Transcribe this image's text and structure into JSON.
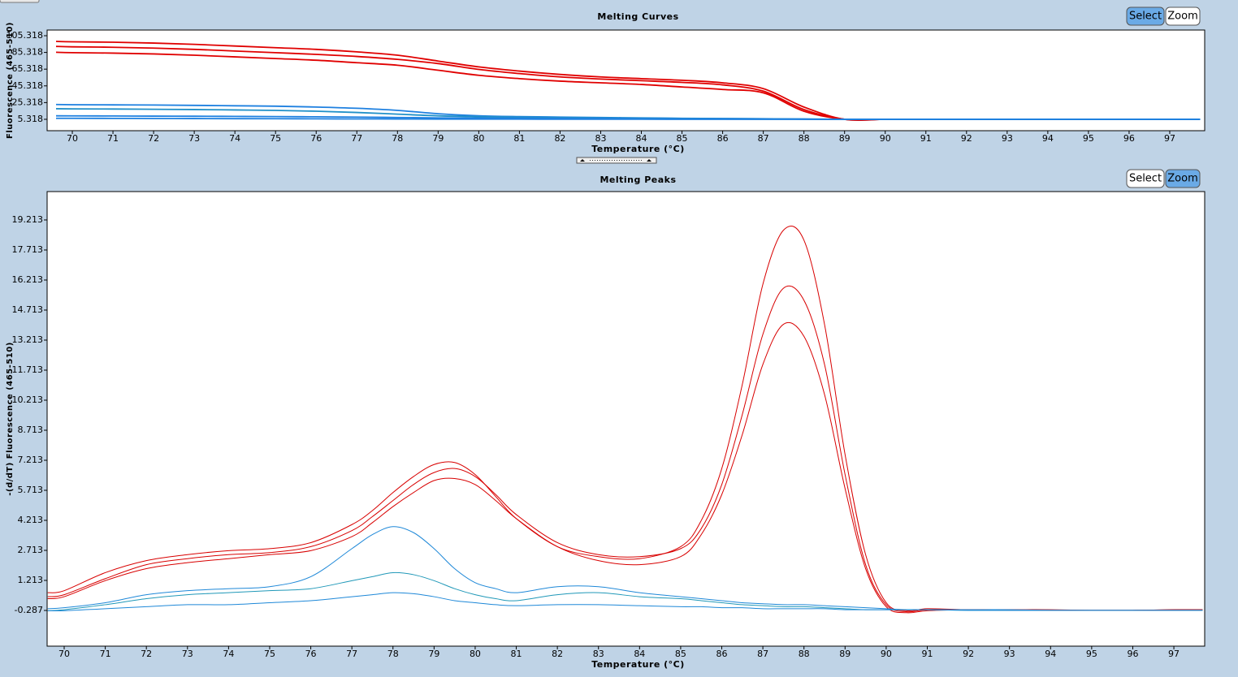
{
  "chart_data": [
    {
      "type": "line",
      "title": "Melting Curves",
      "xlabel": "Temperature (°C)",
      "ylabel": "Fluorescence (465-510)",
      "buttons": [
        "Select",
        "Zoom"
      ],
      "active_button": 0,
      "xlim": [
        69.38,
        97.86
      ],
      "ylim": [
        -8.3,
        112.1
      ],
      "xticks": [
        70,
        71,
        72,
        73,
        74,
        75,
        76,
        77,
        78,
        79,
        80,
        81,
        82,
        83,
        84,
        85,
        86,
        87,
        88,
        89,
        90,
        91,
        92,
        93,
        94,
        95,
        96,
        97
      ],
      "yticks": [
        5.318,
        25.318,
        45.318,
        65.318,
        85.318,
        105.318
      ],
      "x": [
        69.6,
        70,
        71,
        72,
        73,
        74,
        75,
        76,
        77,
        78,
        79,
        80,
        81,
        82,
        83,
        84,
        85,
        86,
        87,
        88,
        89,
        90,
        91,
        92,
        93,
        94,
        95,
        96,
        97,
        97.75
      ],
      "series": [
        {
          "color": "#e00000",
          "values": [
            98.5,
            98,
            97.5,
            96.5,
            95,
            93,
            91,
            89,
            86,
            82,
            75,
            68,
            63,
            59,
            56,
            54,
            52,
            49,
            42,
            20,
            5.3,
            5.3,
            5.3,
            5.3,
            5.3,
            5.3,
            5.3,
            5.3,
            5.3,
            5.3
          ]
        },
        {
          "color": "#e00000",
          "values": [
            92.5,
            92,
            91.5,
            90.5,
            89,
            87,
            85,
            83,
            80.5,
            77,
            72,
            65,
            60,
            56,
            53.5,
            51.5,
            49.5,
            46.5,
            39,
            17,
            5.3,
            5.3,
            5.3,
            5.3,
            5.3,
            5.3,
            5.3,
            5.3,
            5.3,
            5.3
          ]
        },
        {
          "color": "#e00000",
          "values": [
            85.5,
            85,
            84.5,
            83.5,
            82,
            80,
            78,
            76,
            73,
            70,
            64,
            58,
            54,
            51,
            49,
            47,
            44,
            41,
            37,
            15,
            5.4,
            5.4,
            5.4,
            5.4,
            5.4,
            5.4,
            5.4,
            5.4,
            5.4,
            5.4
          ]
        },
        {
          "color": "#1e80e0",
          "values": [
            23,
            22.8,
            22.6,
            22.4,
            22,
            21.5,
            21,
            20,
            18.5,
            16,
            12,
            9.5,
            8.5,
            8,
            7.5,
            7,
            6.5,
            6.2,
            6,
            5.6,
            5.3,
            5.3,
            5.3,
            5.3,
            5.3,
            5.3,
            5.3,
            5.3,
            5.3,
            5.3
          ]
        },
        {
          "color": "#2090c8",
          "values": [
            18,
            17.8,
            17.6,
            17.3,
            17,
            16.5,
            16,
            15,
            13.5,
            11.5,
            9.5,
            8.5,
            7.8,
            7.3,
            7,
            6.7,
            6.4,
            6.1,
            5.9,
            5.6,
            5.4,
            5.4,
            5.4,
            5.4,
            5.4,
            5.4,
            5.4,
            5.4,
            5.4,
            5.4
          ]
        },
        {
          "color": "#1e80e0",
          "values": [
            9.5,
            9.4,
            9.3,
            9.1,
            9,
            8.8,
            8.6,
            8.3,
            8,
            7.5,
            7,
            6.8,
            6.6,
            6.4,
            6.2,
            6,
            5.9,
            5.7,
            5.6,
            5.5,
            5.4,
            5.4,
            5.4,
            5.4,
            5.4,
            5.4,
            5.4,
            5.4,
            5.4,
            5.4
          ]
        },
        {
          "color": "#1e80e0",
          "values": [
            6.5,
            6.5,
            6.4,
            6.3,
            6.2,
            6.1,
            6,
            5.9,
            5.8,
            5.7,
            5.6,
            5.5,
            5.5,
            5.4,
            5.4,
            5.4,
            5.3,
            5.3,
            5.3,
            5.3,
            5.3,
            5.3,
            5.3,
            5.3,
            5.3,
            5.3,
            5.3,
            5.3,
            5.3,
            5.3
          ]
        }
      ]
    },
    {
      "type": "line",
      "title": "Melting Peaks",
      "xlabel": "Temperature (°C)",
      "ylabel": "-(d/dT) Fluorescence (465-510)",
      "buttons": [
        "Select",
        "Zoom"
      ],
      "active_button": 1,
      "xlim": [
        69.585,
        97.75
      ],
      "ylim": [
        -2.07,
        20.63
      ],
      "xticks": [
        70,
        71,
        72,
        73,
        74,
        75,
        76,
        77,
        78,
        79,
        80,
        81,
        82,
        83,
        84,
        85,
        86,
        87,
        88,
        89,
        90,
        91,
        92,
        93,
        94,
        95,
        96,
        97
      ],
      "yticks": [
        -0.287,
        1.213,
        2.713,
        4.213,
        5.713,
        7.213,
        8.713,
        10.213,
        11.713,
        13.213,
        14.713,
        16.213,
        17.713,
        19.213
      ],
      "x": [
        69.6,
        70,
        71,
        72,
        73,
        74,
        75,
        76,
        77,
        77.5,
        78,
        78.5,
        79,
        79.5,
        80,
        80.5,
        81,
        82,
        83,
        84,
        85,
        85.5,
        86,
        86.5,
        87,
        87.5,
        88,
        88.5,
        89,
        89.5,
        90,
        90.5,
        91,
        92,
        93,
        94,
        95,
        96,
        97,
        97.7
      ],
      "series": [
        {
          "color": "#d80000",
          "values": [
            0.6,
            0.7,
            1.6,
            2.2,
            2.5,
            2.7,
            2.8,
            3.1,
            4.0,
            4.7,
            5.6,
            6.4,
            7.0,
            7.1,
            6.5,
            5.4,
            4.3,
            2.9,
            2.4,
            2.3,
            2.9,
            4.2,
            6.8,
            11,
            16,
            18.7,
            18.2,
            14,
            7.5,
            2.5,
            0.1,
            -0.3,
            -0.2,
            -0.25,
            -0.25,
            -0.25,
            -0.28,
            -0.28,
            -0.25,
            -0.25
          ]
        },
        {
          "color": "#d80000",
          "values": [
            0.4,
            0.5,
            1.3,
            2.0,
            2.3,
            2.5,
            2.6,
            2.9,
            3.7,
            4.4,
            5.2,
            6.0,
            6.6,
            6.8,
            6.4,
            5.5,
            4.5,
            3.1,
            2.5,
            2.4,
            2.8,
            3.8,
            6.0,
            9.5,
            13.5,
            15.8,
            15.2,
            12,
            6.5,
            2.0,
            0,
            -0.35,
            -0.25,
            -0.25,
            -0.28,
            -0.28,
            -0.28,
            -0.28,
            -0.28,
            -0.25
          ]
        },
        {
          "color": "#d80000",
          "values": [
            0.3,
            0.4,
            1.2,
            1.8,
            2.1,
            2.3,
            2.5,
            2.7,
            3.4,
            4.1,
            4.9,
            5.6,
            6.2,
            6.3,
            6.0,
            5.2,
            4.3,
            2.9,
            2.2,
            2.0,
            2.4,
            3.5,
            5.5,
            8.5,
            12,
            14,
            13.4,
            10.5,
            5.8,
            1.8,
            -0.1,
            -0.4,
            -0.3,
            -0.25,
            -0.25,
            -0.28,
            -0.28,
            -0.28,
            -0.25,
            -0.25
          ]
        },
        {
          "color": "#1e88d8",
          "values": [
            -0.2,
            -0.15,
            0.1,
            0.5,
            0.7,
            0.8,
            0.9,
            1.4,
            2.8,
            3.5,
            3.9,
            3.6,
            2.8,
            1.8,
            1.1,
            0.8,
            0.6,
            0.9,
            0.9,
            0.6,
            0.4,
            0.3,
            0.2,
            0.1,
            0.05,
            0,
            0,
            -0.05,
            -0.1,
            -0.15,
            -0.2,
            -0.25,
            -0.25,
            -0.25,
            -0.25,
            -0.28,
            -0.28,
            -0.28,
            -0.28,
            -0.28
          ]
        },
        {
          "color": "#2098b8",
          "values": [
            -0.3,
            -0.25,
            0,
            0.3,
            0.5,
            0.6,
            0.7,
            0.8,
            1.2,
            1.4,
            1.6,
            1.5,
            1.2,
            0.8,
            0.5,
            0.3,
            0.2,
            0.5,
            0.6,
            0.4,
            0.3,
            0.2,
            0.1,
            0,
            -0.05,
            -0.1,
            -0.1,
            -0.15,
            -0.2,
            -0.25,
            -0.25,
            -0.25,
            -0.25,
            -0.28,
            -0.28,
            -0.28,
            -0.28,
            -0.28,
            -0.28,
            -0.28
          ]
        },
        {
          "color": "#1e88d8",
          "values": [
            -0.3,
            -0.3,
            -0.2,
            -0.1,
            0,
            0,
            0.1,
            0.2,
            0.4,
            0.5,
            0.6,
            0.55,
            0.4,
            0.2,
            0.1,
            0,
            -0.05,
            0,
            0,
            -0.05,
            -0.1,
            -0.1,
            -0.15,
            -0.15,
            -0.2,
            -0.2,
            -0.2,
            -0.2,
            -0.25,
            -0.25,
            -0.25,
            -0.25,
            -0.25,
            -0.28,
            -0.28,
            -0.28,
            -0.28,
            -0.28,
            -0.28,
            -0.28
          ]
        }
      ]
    }
  ]
}
